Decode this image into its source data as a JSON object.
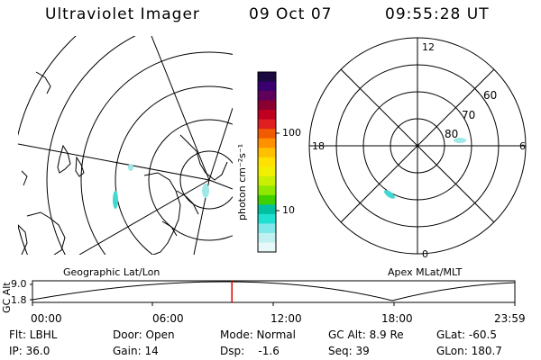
{
  "header": {
    "instrument": "Ultraviolet Imager",
    "date": "09 Oct 07",
    "time": "09:55:28 UT"
  },
  "colorbar": {
    "unit_label": "photon cm⁻²s⁻¹",
    "ticks": [
      "100",
      "10"
    ],
    "colors": [
      "#1a0a40",
      "#3a0070",
      "#60005a",
      "#8a0030",
      "#c00020",
      "#e02020",
      "#f05a00",
      "#ff9000",
      "#ffc000",
      "#ffe000",
      "#f0f000",
      "#c8f000",
      "#90e800",
      "#40d000",
      "#00c0a0",
      "#20e0d0",
      "#80e8e8",
      "#c0f0f0",
      "#e8f8f8"
    ]
  },
  "geo_map": {
    "caption": "Geographic Lat/Lon"
  },
  "apex_map": {
    "caption": "Apex MLat/MLT",
    "mlt_labels": {
      "top": "12",
      "left": "18",
      "right": "6",
      "bottom": "0"
    },
    "lat_labels": [
      "60",
      "70",
      "80"
    ]
  },
  "altitude_plot": {
    "ylabel": "GC Alt",
    "y_ticks": [
      "9.0",
      "1.8"
    ],
    "x_ticks": [
      "00:00",
      "06:00",
      "12:00",
      "18:00",
      "23:59"
    ],
    "current_time_fraction": 0.4135
  },
  "info": {
    "flt": "Flt: LBHL",
    "ip": "IP: 36.0",
    "door": "Door: Open",
    "gain": "Gain: 14",
    "mode": "Mode: Normal",
    "dsp": "Dsp:    -1.6",
    "gcalt": "GC Alt: 8.9 Re",
    "seq": "Seq: 39",
    "glat": "GLat: -60.5",
    "glon": "GLon: 180.7"
  }
}
